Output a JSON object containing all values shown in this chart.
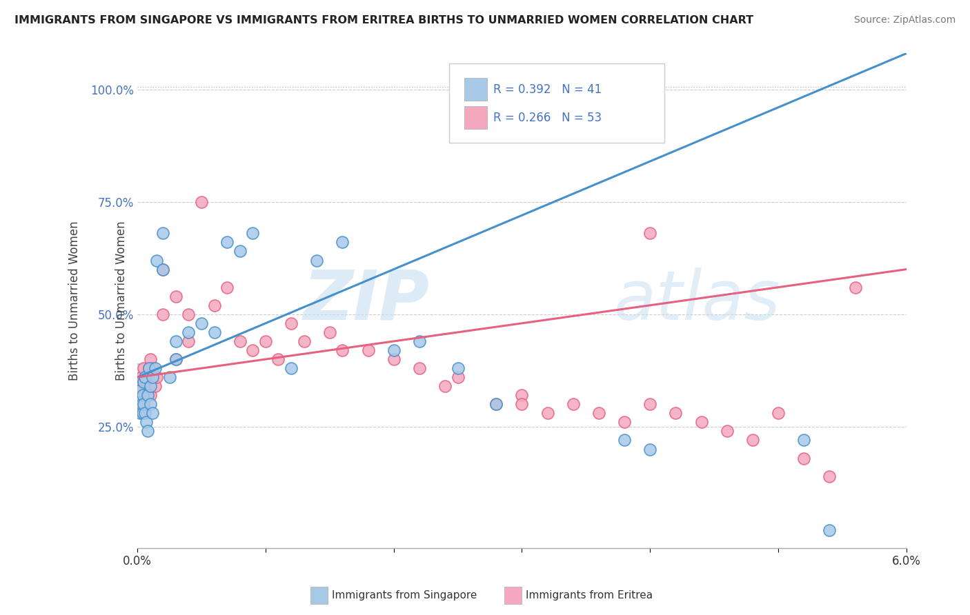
{
  "title": "IMMIGRANTS FROM SINGAPORE VS IMMIGRANTS FROM ERITREA BIRTHS TO UNMARRIED WOMEN CORRELATION CHART",
  "source": "Source: ZipAtlas.com",
  "color_singapore": "#a8c8e8",
  "color_eritrea": "#f4a8c0",
  "line_color_singapore": "#4490cc",
  "line_color_eritrea": "#e86080",
  "watermark_zip": "ZIP",
  "watermark_atlas": "atlas",
  "legend_label_singapore": "Immigrants from Singapore",
  "legend_label_eritrea": "Immigrants from Eritrea",
  "xmin": 0.0,
  "xmax": 0.06,
  "ymin": -0.02,
  "ymax": 1.08,
  "sing_line_x0": 0.0,
  "sing_line_y0": 0.36,
  "sing_line_x1": 0.06,
  "sing_line_y1": 1.08,
  "erit_line_x0": 0.0,
  "erit_line_y0": 0.36,
  "erit_line_x1": 0.06,
  "erit_line_y1": 0.6,
  "dash_line_y": 1.005,
  "singapore_x": [
    0.0001,
    0.0002,
    0.0003,
    0.0004,
    0.0004,
    0.0005,
    0.0005,
    0.0006,
    0.0006,
    0.0007,
    0.0008,
    0.0008,
    0.0009,
    0.001,
    0.001,
    0.0012,
    0.0012,
    0.0014,
    0.0015,
    0.002,
    0.002,
    0.0025,
    0.003,
    0.003,
    0.004,
    0.005,
    0.006,
    0.007,
    0.008,
    0.009,
    0.012,
    0.014,
    0.016,
    0.02,
    0.022,
    0.025,
    0.028,
    0.038,
    0.04,
    0.052,
    0.054
  ],
  "singapore_y": [
    0.33,
    0.28,
    0.3,
    0.28,
    0.32,
    0.35,
    0.3,
    0.36,
    0.28,
    0.26,
    0.24,
    0.32,
    0.38,
    0.34,
    0.3,
    0.36,
    0.28,
    0.38,
    0.62,
    0.6,
    0.68,
    0.36,
    0.4,
    0.44,
    0.46,
    0.48,
    0.46,
    0.66,
    0.64,
    0.68,
    0.38,
    0.62,
    0.66,
    0.42,
    0.44,
    0.38,
    0.3,
    0.22,
    0.2,
    0.22,
    0.02
  ],
  "eritrea_x": [
    0.0001,
    0.0002,
    0.0003,
    0.0004,
    0.0005,
    0.0006,
    0.0007,
    0.0008,
    0.0009,
    0.001,
    0.001,
    0.0012,
    0.0014,
    0.0015,
    0.002,
    0.002,
    0.003,
    0.003,
    0.004,
    0.004,
    0.005,
    0.006,
    0.007,
    0.008,
    0.009,
    0.01,
    0.011,
    0.012,
    0.013,
    0.015,
    0.016,
    0.018,
    0.02,
    0.022,
    0.024,
    0.025,
    0.028,
    0.03,
    0.032,
    0.034,
    0.036,
    0.038,
    0.04,
    0.042,
    0.044,
    0.046,
    0.048,
    0.05,
    0.052,
    0.054,
    0.03,
    0.04,
    0.056
  ],
  "eritrea_y": [
    0.35,
    0.33,
    0.36,
    0.3,
    0.38,
    0.32,
    0.34,
    0.36,
    0.38,
    0.4,
    0.32,
    0.38,
    0.34,
    0.36,
    0.6,
    0.5,
    0.54,
    0.4,
    0.5,
    0.44,
    0.75,
    0.52,
    0.56,
    0.44,
    0.42,
    0.44,
    0.4,
    0.48,
    0.44,
    0.46,
    0.42,
    0.42,
    0.4,
    0.38,
    0.34,
    0.36,
    0.3,
    0.32,
    0.28,
    0.3,
    0.28,
    0.26,
    0.3,
    0.28,
    0.26,
    0.24,
    0.22,
    0.28,
    0.18,
    0.14,
    0.3,
    0.68,
    0.56
  ]
}
